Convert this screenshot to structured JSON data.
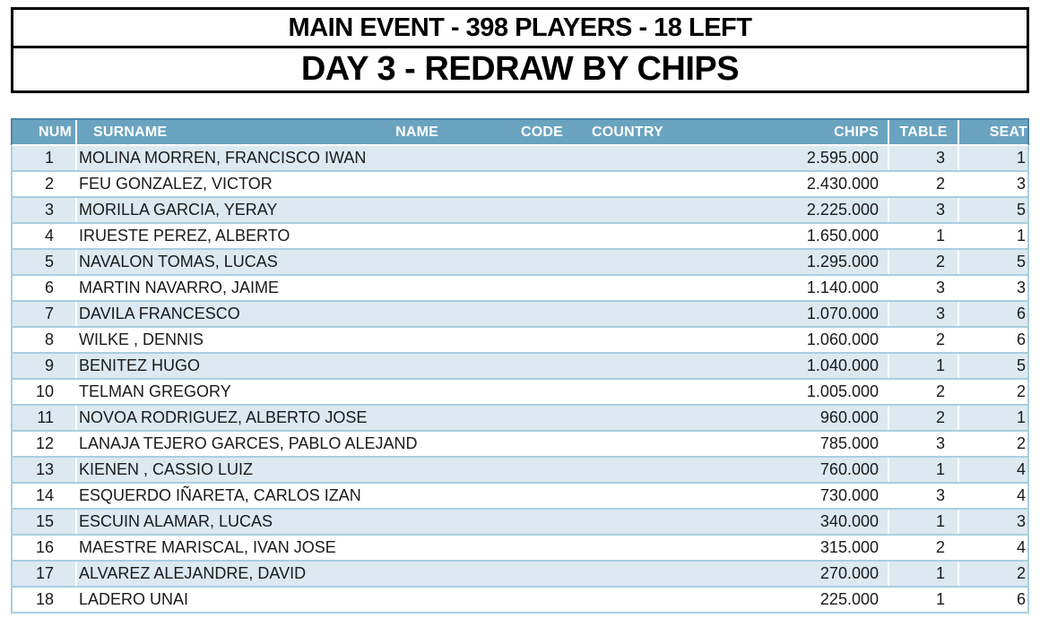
{
  "title_box": {
    "line1": "MAIN EVENT - 398 PLAYERS - 18 LEFT",
    "line2": "DAY 3 - REDRAW BY CHIPS"
  },
  "table": {
    "columns": {
      "num": "NUM",
      "surname": "SURNAME",
      "name": "NAME",
      "code": "CODE",
      "country": "COUNTRY",
      "chips": "CHIPS",
      "table": "TABLE",
      "seat": "SEAT"
    },
    "rows": [
      {
        "num": "1",
        "player": "MOLINA MORREN, FRANCISCO IWAN",
        "code": "",
        "country": "",
        "chips": "2.595.000",
        "table": "3",
        "seat": "1"
      },
      {
        "num": "2",
        "player": "FEU GONZALEZ, VICTOR",
        "code": "",
        "country": "",
        "chips": "2.430.000",
        "table": "2",
        "seat": "3"
      },
      {
        "num": "3",
        "player": "MORILLA GARCIA, YERAY",
        "code": "",
        "country": "",
        "chips": "2.225.000",
        "table": "3",
        "seat": "5"
      },
      {
        "num": "4",
        "player": "IRUESTE PEREZ, ALBERTO",
        "code": "",
        "country": "",
        "chips": "1.650.000",
        "table": "1",
        "seat": "1"
      },
      {
        "num": "5",
        "player": "NAVALON TOMAS, LUCAS",
        "code": "",
        "country": "",
        "chips": "1.295.000",
        "table": "2",
        "seat": "5"
      },
      {
        "num": "6",
        "player": "MARTIN NAVARRO, JAIME",
        "code": "",
        "country": "",
        "chips": "1.140.000",
        "table": "3",
        "seat": "3"
      },
      {
        "num": "7",
        "player": "DAVILA FRANCESCO",
        "code": "",
        "country": "",
        "chips": "1.070.000",
        "table": "3",
        "seat": "6"
      },
      {
        "num": "8",
        "player": "WILKE , DENNIS",
        "code": "",
        "country": "",
        "chips": "1.060.000",
        "table": "2",
        "seat": "6"
      },
      {
        "num": "9",
        "player": "BENITEZ HUGO",
        "code": "",
        "country": "",
        "chips": "1.040.000",
        "table": "1",
        "seat": "5"
      },
      {
        "num": "10",
        "player": "TELMAN GREGORY",
        "code": "",
        "country": "",
        "chips": "1.005.000",
        "table": "2",
        "seat": "2"
      },
      {
        "num": "11",
        "player": "NOVOA RODRIGUEZ, ALBERTO JOSE",
        "code": "",
        "country": "",
        "chips": "960.000",
        "table": "2",
        "seat": "1"
      },
      {
        "num": "12",
        "player": "LANAJA TEJERO GARCES, PABLO ALEJAND",
        "code": "",
        "country": "",
        "chips": "785.000",
        "table": "3",
        "seat": "2"
      },
      {
        "num": "13",
        "player": "KIENEN , CASSIO LUIZ",
        "code": "",
        "country": "",
        "chips": "760.000",
        "table": "1",
        "seat": "4"
      },
      {
        "num": "14",
        "player": "ESQUERDO IÑARETA, CARLOS IZAN",
        "code": "",
        "country": "",
        "chips": "730.000",
        "table": "3",
        "seat": "4"
      },
      {
        "num": "15",
        "player": "ESCUIN ALAMAR, LUCAS",
        "code": "",
        "country": "",
        "chips": "340.000",
        "table": "1",
        "seat": "3"
      },
      {
        "num": "16",
        "player": "MAESTRE MARISCAL, IVAN JOSE",
        "code": "",
        "country": "",
        "chips": "315.000",
        "table": "2",
        "seat": "4"
      },
      {
        "num": "17",
        "player": "ALVAREZ ALEJANDRE, DAVID",
        "code": "",
        "country": "",
        "chips": "270.000",
        "table": "1",
        "seat": "2"
      },
      {
        "num": "18",
        "player": "LADERO UNAI",
        "code": "",
        "country": "",
        "chips": "225.000",
        "table": "1",
        "seat": "6"
      }
    ]
  },
  "colors": {
    "header_bg": "#6aa3c0",
    "header_border": "#4e86a6",
    "row_alt_bg": "#dce9f1",
    "grid_line": "#a9cede",
    "title_text": "#000000",
    "row_text": "#1a1a1a"
  }
}
